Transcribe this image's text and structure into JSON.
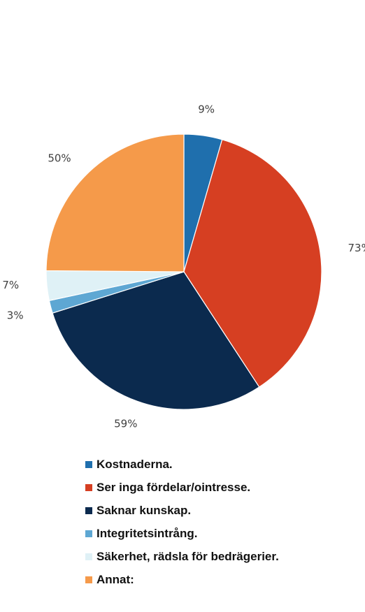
{
  "chart_data": {
    "type": "pie",
    "title": "",
    "start": "12 o'clock",
    "direction": "clockwise",
    "labels_format": "percent",
    "slices": [
      {
        "label": "Kostnaderna.",
        "value": 9,
        "display": "9%",
        "color": "#1f6fad"
      },
      {
        "label": "Ser inga fördelar/ointresse.",
        "value": 73,
        "display": "73%",
        "color": "#d63f22"
      },
      {
        "label": "Saknar kunskap.",
        "value": 59,
        "display": "59%",
        "color": "#0b2a4e"
      },
      {
        "label": "Integritetsintrång.",
        "value": 3,
        "display": "3%",
        "color": "#5ea7d3"
      },
      {
        "label": "Säkerhet, rädsla för bedrägerier.",
        "value": 7,
        "display": "7%",
        "color": "#dff1f6"
      },
      {
        "label": "Annat:",
        "value": 50,
        "display": "50%",
        "color": "#f59a4a"
      }
    ],
    "legend": {
      "position": "bottom"
    }
  }
}
